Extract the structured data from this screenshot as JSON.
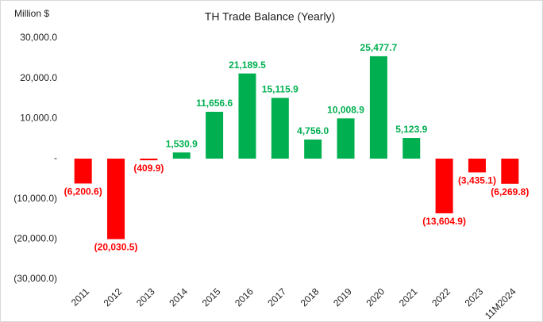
{
  "chart_data": {
    "type": "bar",
    "title": "TH Trade Balance (Yearly)",
    "y_axis_label": "Million $",
    "categories": [
      "2011",
      "2012",
      "2013",
      "2014",
      "2015",
      "2016",
      "2017",
      "2018",
      "2019",
      "2020",
      "2021",
      "2022",
      "2023",
      "11M2024"
    ],
    "values": [
      -6200.6,
      -20030.5,
      -409.9,
      1530.9,
      11656.6,
      21189.5,
      15115.9,
      4756.0,
      10008.9,
      25477.7,
      5123.9,
      -13604.9,
      -3435.1,
      -6269.8
    ],
    "value_labels": [
      "(6,200.6)",
      "(20,030.5)",
      "(409.9)",
      "1,530.9",
      "11,656.6",
      "21,189.5",
      "15,115.9",
      "4,756.0",
      "10,008.9",
      "25,477.7",
      "5,123.9",
      "(13,604.9)",
      "(3,435.1)",
      "(6,269.8)"
    ],
    "positive_color": "#00b050",
    "negative_color": "#ff0000",
    "ylim": [
      -30000,
      30000
    ],
    "yticks": [
      {
        "value": -30000,
        "label": "(30,000.0)"
      },
      {
        "value": -20000,
        "label": "(20,000.0)"
      },
      {
        "value": -10000,
        "label": "(10,000.0)"
      },
      {
        "value": 0,
        "label": "-"
      },
      {
        "value": 10000,
        "label": "10,000.0"
      },
      {
        "value": 20000,
        "label": "20,000.0"
      },
      {
        "value": 30000,
        "label": "30,000.0"
      }
    ],
    "grid": false
  }
}
